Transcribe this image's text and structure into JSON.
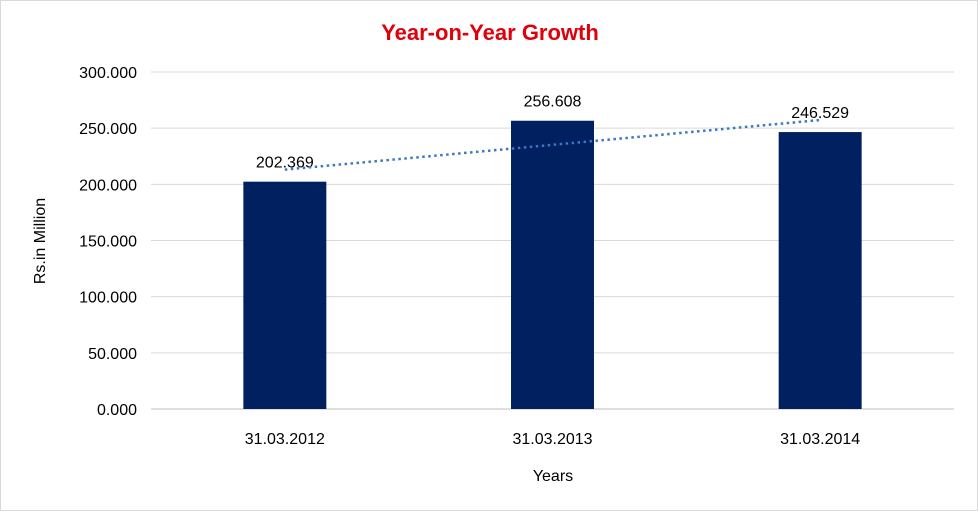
{
  "chart_data": {
    "type": "bar",
    "title": "Year-on-Year Growth",
    "xlabel": "Years",
    "ylabel": "Rs.in Million",
    "categories": [
      "31.03.2012",
      "31.03.2013",
      "31.03.2014"
    ],
    "values": [
      202.369,
      256.608,
      246.529
    ],
    "data_labels": [
      "202.369",
      "256.608",
      "246.529"
    ],
    "ylim": [
      0,
      300
    ],
    "yticks": [
      0,
      50,
      100,
      150,
      200,
      250,
      300
    ],
    "ytick_labels": [
      "0.000",
      "50.000",
      "100.000",
      "150.000",
      "200.000",
      "250.000",
      "300.000"
    ],
    "grid": true,
    "legend": "none",
    "trendline": {
      "type": "linear",
      "style": "dotted",
      "color": "#3b78c0"
    },
    "colors": {
      "bar": "#002060",
      "title": "#e0000b",
      "grid": "#d9d9d9",
      "axis": "#bfbfbf"
    }
  }
}
